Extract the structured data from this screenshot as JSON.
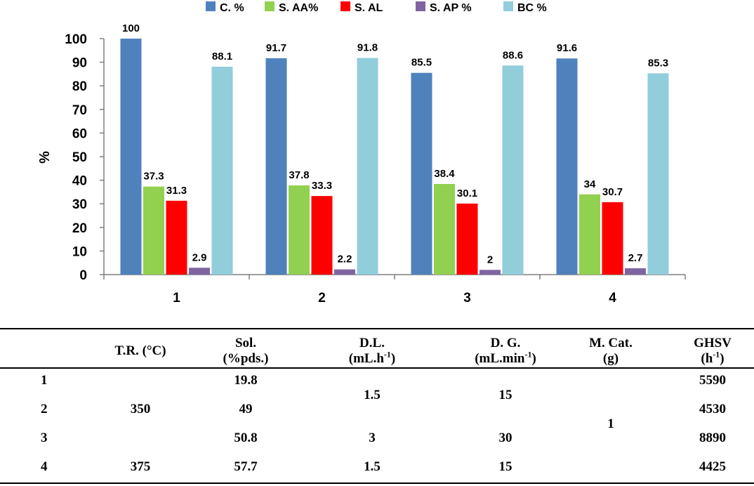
{
  "chart_data": {
    "type": "bar",
    "categories": [
      "1",
      "2",
      "3",
      "4"
    ],
    "series": [
      {
        "name": "C. %",
        "color": "#4F81BD",
        "values": [
          100,
          91.7,
          85.5,
          91.6
        ],
        "labels": [
          "100",
          "91.7",
          "85.5",
          "91.6"
        ]
      },
      {
        "name": "S. AA%",
        "color": "#92D050",
        "values": [
          37.3,
          37.8,
          38.4,
          34
        ],
        "labels": [
          "37.3",
          "37.8",
          "38.4",
          "34"
        ]
      },
      {
        "name": "S. AL",
        "color": "#FF0000",
        "values": [
          31.3,
          33.3,
          30.1,
          30.7
        ],
        "labels": [
          "31.3",
          "33.3",
          "30.1",
          "30.7"
        ]
      },
      {
        "name": "S. AP %",
        "color": "#8064A2",
        "values": [
          2.9,
          2.2,
          2,
          2.7
        ],
        "labels": [
          "2.9",
          "2.2",
          "2",
          "2.7"
        ]
      },
      {
        "name": "BC %",
        "color": "#92CDDC",
        "values": [
          88.1,
          91.8,
          88.6,
          85.3
        ],
        "labels": [
          "88.1",
          "91.8",
          "88.6",
          "85.3"
        ]
      }
    ],
    "ylabel": "%",
    "ylim": [
      0,
      100
    ],
    "yticks": [
      "0",
      "10",
      "20",
      "30",
      "40",
      "50",
      "60",
      "70",
      "80",
      "90",
      "100"
    ],
    "legend": "top",
    "grid": false
  },
  "table": {
    "headers": {
      "tr": "T.R. (°C)",
      "sol_1": "Sol.",
      "sol_2": "(%pds.)",
      "dl_1": "D.L.",
      "dl_2": "(mL.h",
      "dl_sup": "-1",
      "dl_3": ")",
      "dg_1": "D. G.",
      "dg_2": "(mL.min",
      "dg_sup": "-1",
      "dg_3": ")",
      "mcat_1": "M. Cat.",
      "mcat_2": "(g)",
      "ghsv_1": "GHSV",
      "ghsv_2": "(h",
      "ghsv_sup": "-1",
      "ghsv_3": ")"
    },
    "rows": [
      {
        "id": "1",
        "sol": "19.8",
        "ghsv": "5590"
      },
      {
        "id": "2",
        "sol": "49",
        "ghsv": "4530"
      },
      {
        "id": "3",
        "sol": "50.8",
        "ghsv": "8890"
      },
      {
        "id": "4",
        "sol": "57.7",
        "ghsv": "4425"
      }
    ],
    "merged": {
      "tr_123": "350",
      "tr_4": "375",
      "dl_12": "1.5",
      "dl_3": "3",
      "dl_4": "1.5",
      "dg_12": "15",
      "dg_3": "30",
      "dg_4": "15",
      "mcat_all": "1"
    }
  }
}
